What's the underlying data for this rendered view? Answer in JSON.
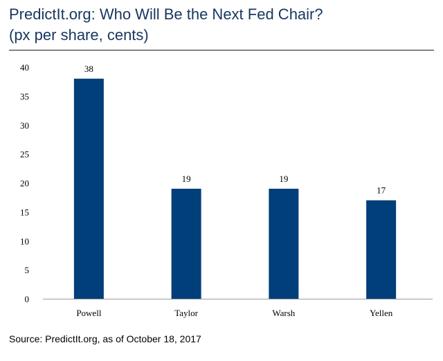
{
  "title_line1": "PredictIt.org: Who Will Be the Next Fed Chair?",
  "title_line2": "(px per share, cents)",
  "source": "Source: PredictIt.org, as of October 18, 2017",
  "colors": {
    "bar": "#003f7a",
    "title": "#17375e"
  },
  "chart_data": {
    "type": "bar",
    "title": "PredictIt.org: Who Will Be the Next Fed Chair?",
    "subtitle": "(px per share, cents)",
    "categories": [
      "Powell",
      "Taylor",
      "Warsh",
      "Yellen"
    ],
    "values": [
      38,
      19,
      19,
      17
    ],
    "data_labels": [
      "38",
      "19",
      "19",
      "17"
    ],
    "yticks": [
      0,
      5,
      10,
      15,
      20,
      25,
      30,
      35,
      40
    ],
    "ylim": [
      0,
      40
    ],
    "xlabel": "",
    "ylabel": "",
    "grid": false,
    "legend": "none"
  }
}
